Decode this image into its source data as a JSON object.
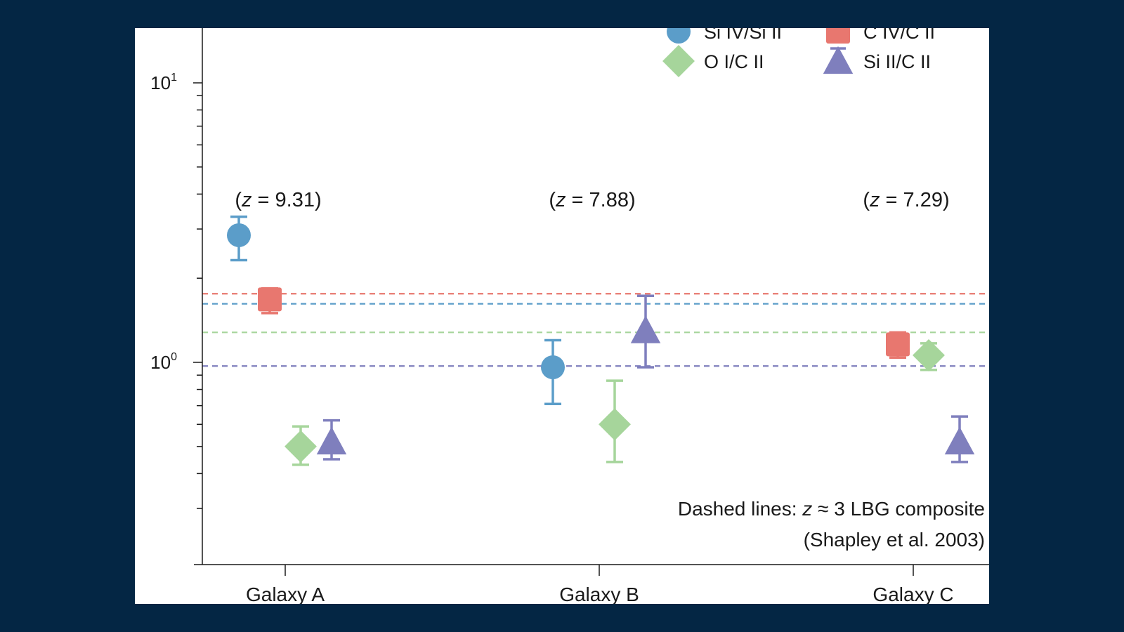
{
  "chart_data": {
    "type": "scatter",
    "title": "",
    "xlabel": "",
    "ylabel": "",
    "yscale": "log",
    "ylim": [
      0.26,
      15
    ],
    "categories": [
      "Galaxy A",
      "Galaxy B",
      "Galaxy C"
    ],
    "redshift_labels": [
      {
        "category": "Galaxy A",
        "prefix": "(",
        "z": "z",
        "rest": " = 9.31)"
      },
      {
        "category": "Galaxy B",
        "prefix": "(",
        "z": "z",
        "rest": " = 7.88)"
      },
      {
        "category": "Galaxy C",
        "prefix": "(",
        "z": "z",
        "rest": " = 7.29)"
      }
    ],
    "y_ticks": [
      {
        "base": "10",
        "exp": "1",
        "value": 10
      },
      {
        "base": "10",
        "exp": "0",
        "value": 1
      }
    ],
    "grid": false,
    "legend": {
      "placement": "top-right"
    },
    "series": [
      {
        "name": "Si IV/Si II",
        "marker": "circle",
        "color": "#5b9dc9",
        "points": [
          {
            "category": "Galaxy A",
            "y": 2.85,
            "low": 2.32,
            "high": 3.32
          },
          {
            "category": "Galaxy B",
            "y": 0.96,
            "low": 0.71,
            "high": 1.2
          }
        ],
        "reference": 1.62
      },
      {
        "name": "C IV/C II",
        "marker": "square",
        "color": "#e8776f",
        "points": [
          {
            "category": "Galaxy A",
            "y": 1.68,
            "low": 1.5,
            "high": 1.84
          },
          {
            "category": "Galaxy C",
            "y": 1.16,
            "low": 1.04,
            "high": 1.28
          }
        ],
        "reference": 1.76
      },
      {
        "name": "O I/C II",
        "marker": "diamond",
        "color": "#a6d59b",
        "points": [
          {
            "category": "Galaxy A",
            "y": 0.5,
            "low": 0.43,
            "high": 0.59
          },
          {
            "category": "Galaxy B",
            "y": 0.6,
            "low": 0.44,
            "high": 0.86
          },
          {
            "category": "Galaxy C",
            "y": 1.06,
            "low": 0.94,
            "high": 1.17
          }
        ],
        "reference": 1.28
      },
      {
        "name": "Si II/C II",
        "marker": "triangle",
        "color": "#7f7fbd",
        "points": [
          {
            "category": "Galaxy A",
            "y": 0.52,
            "low": 0.45,
            "high": 0.62
          },
          {
            "category": "Galaxy B",
            "y": 1.3,
            "low": 0.96,
            "high": 1.73
          },
          {
            "category": "Galaxy C",
            "y": 0.52,
            "low": 0.44,
            "high": 0.64
          }
        ],
        "reference": 0.97
      }
    ],
    "annotation": {
      "line1_prefix": "Dashed lines: ",
      "line1_z": "z",
      "line1_rest": " ≈ 3 LBG composite",
      "line2": "(Shapley et al. 2003)"
    }
  }
}
